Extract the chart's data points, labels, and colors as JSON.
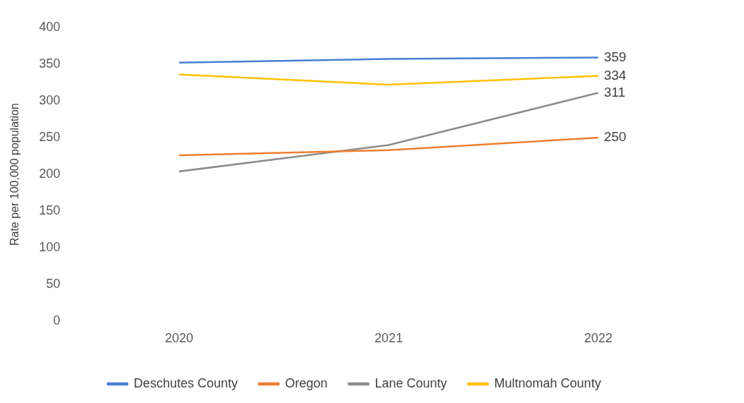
{
  "chart_data": {
    "type": "line",
    "ylabel": "Rate per 100,000 population",
    "categories": [
      "2020",
      "2021",
      "2022"
    ],
    "series": [
      {
        "name": "Deschutes County",
        "color": "#4a7fcf",
        "values": [
          352,
          357,
          359
        ],
        "value_labels": [
          null,
          null,
          "359"
        ]
      },
      {
        "name": "Oregon",
        "color": "#ed7d31",
        "values": [
          226,
          233,
          250
        ],
        "value_labels": [
          null,
          null,
          "250"
        ]
      },
      {
        "name": "Lane County",
        "color": "#8c8c8c",
        "values": [
          204,
          240,
          311
        ],
        "value_labels": [
          null,
          null,
          "311"
        ]
      },
      {
        "name": "Multnomah County",
        "color": "#ffc000",
        "values": [
          336,
          322,
          334
        ],
        "value_labels": [
          null,
          null,
          "334"
        ]
      }
    ],
    "ylim": [
      0,
      400
    ],
    "yticks": [
      0,
      50,
      100,
      150,
      200,
      250,
      300,
      350,
      400
    ],
    "legend": "bottom",
    "grid": false,
    "marker": "none",
    "line_style": "solid"
  }
}
